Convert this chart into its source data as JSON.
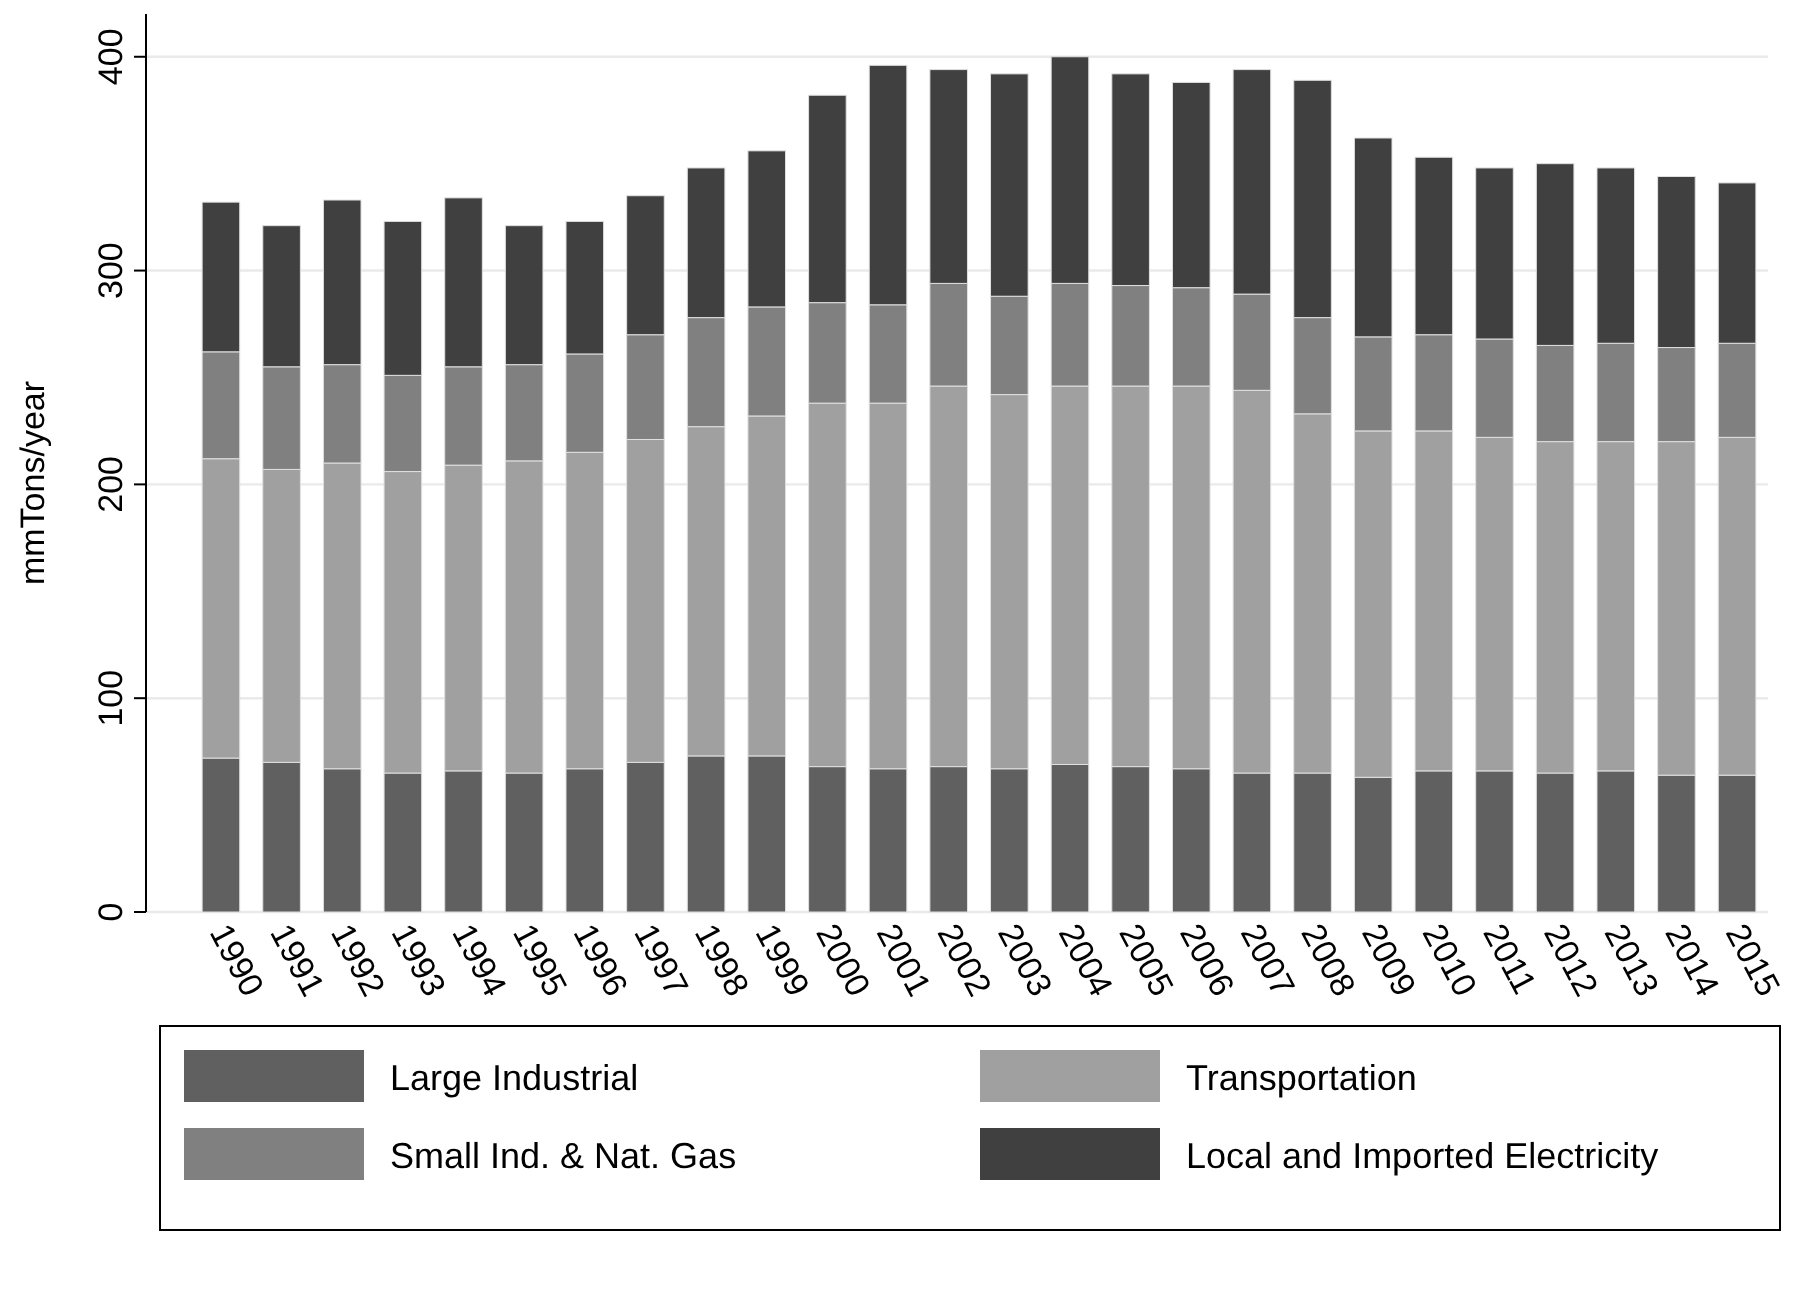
{
  "chart_data": {
    "type": "bar",
    "stacked": true,
    "ylabel": "mmTons/year",
    "categories": [
      "1990",
      "1991",
      "1992",
      "1993",
      "1994",
      "1995",
      "1996",
      "1997",
      "1998",
      "1999",
      "2000",
      "2001",
      "2002",
      "2003",
      "2004",
      "2005",
      "2006",
      "2007",
      "2008",
      "2009",
      "2010",
      "2011",
      "2012",
      "2013",
      "2014",
      "2015"
    ],
    "series": [
      {
        "name": "Large Industrial",
        "color": "#606060",
        "values": [
          72,
          70,
          67,
          65,
          66,
          65,
          67,
          70,
          73,
          73,
          68,
          67,
          68,
          67,
          69,
          68,
          67,
          65,
          65,
          63,
          66,
          66,
          65,
          66,
          64,
          64
        ]
      },
      {
        "name": "Transportation",
        "color": "#a0a0a0",
        "values": [
          140,
          137,
          143,
          141,
          143,
          146,
          148,
          151,
          154,
          159,
          170,
          171,
          178,
          175,
          177,
          178,
          179,
          179,
          168,
          162,
          159,
          156,
          155,
          154,
          156,
          158
        ]
      },
      {
        "name": "Small Ind. & Nat. Gas",
        "color": "#808080",
        "values": [
          50,
          48,
          46,
          45,
          46,
          45,
          46,
          49,
          51,
          51,
          47,
          46,
          48,
          46,
          48,
          47,
          46,
          45,
          45,
          44,
          45,
          46,
          45,
          46,
          44,
          44
        ]
      },
      {
        "name": "Local and Imported Electricity",
        "color": "#404040",
        "values": [
          70,
          66,
          77,
          72,
          79,
          65,
          62,
          65,
          70,
          73,
          97,
          112,
          100,
          104,
          106,
          99,
          96,
          105,
          111,
          93,
          83,
          80,
          85,
          82,
          80,
          75
        ]
      }
    ],
    "ylim": [
      0,
      420
    ],
    "yticks": [
      0,
      100,
      200,
      300,
      400
    ],
    "grid": "y",
    "legend": "bottom"
  }
}
